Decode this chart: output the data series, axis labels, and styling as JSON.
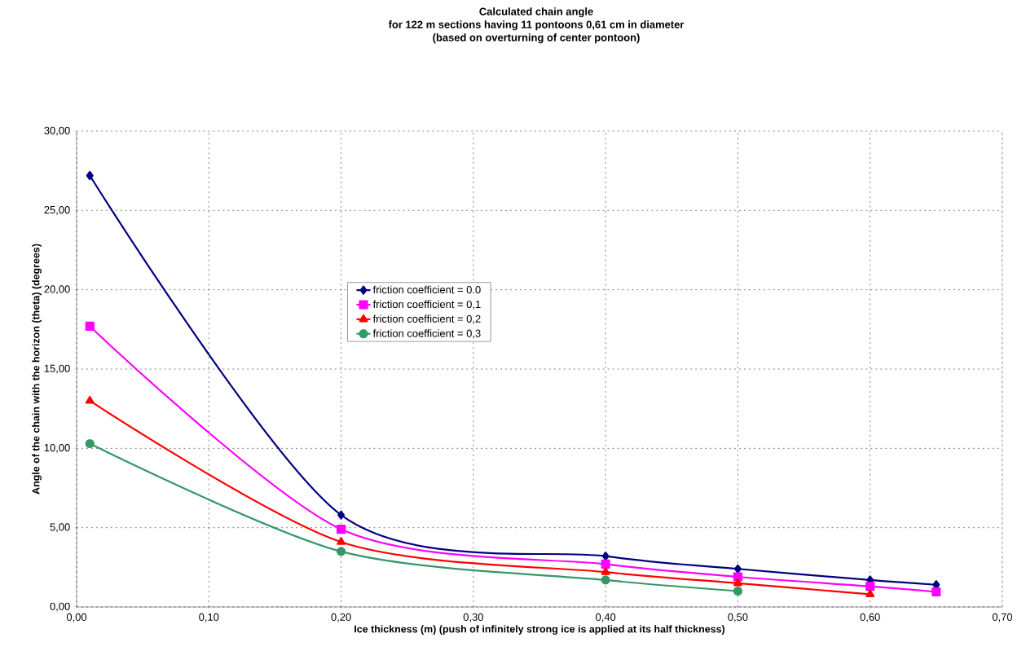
{
  "chart_data": {
    "type": "line",
    "title": "Calculated chain angle\nfor 122 m sections having 11 pontoons 0,61 cm in diameter\n(based on overturning of center pontoon)",
    "xlabel": "Ice thickness (m) (push of infinitely strong ice is applied at its half thickness)",
    "ylabel": "Angle of the chain with the horizon (theta) (degrees)",
    "xlim": [
      0,
      0.7
    ],
    "ylim": [
      0,
      30
    ],
    "xticks": [
      {
        "value": 0,
        "label": "0,00"
      },
      {
        "value": 0.1,
        "label": "0,10"
      },
      {
        "value": 0.2,
        "label": "0,20"
      },
      {
        "value": 0.3,
        "label": "0,30"
      },
      {
        "value": 0.4,
        "label": "0,40"
      },
      {
        "value": 0.5,
        "label": "0,50"
      },
      {
        "value": 0.6,
        "label": "0,60"
      },
      {
        "value": 0.7,
        "label": "0,70"
      }
    ],
    "yticks": [
      {
        "value": 0,
        "label": "0,00"
      },
      {
        "value": 5,
        "label": "5,00"
      },
      {
        "value": 10,
        "label": "10,00"
      },
      {
        "value": 15,
        "label": "15,00"
      },
      {
        "value": 20,
        "label": "20,00"
      },
      {
        "value": 25,
        "label": "25,00"
      },
      {
        "value": 30,
        "label": "30,00"
      }
    ],
    "grid": true,
    "legend": "center",
    "line_style": "solid",
    "series": [
      {
        "name": "friction coefficient = 0.0",
        "color": "#000080",
        "marker": "diamond",
        "x": [
          0.01,
          0.2,
          0.4,
          0.5,
          0.6,
          0.65
        ],
        "values": [
          27.2,
          5.8,
          3.2,
          2.4,
          1.7,
          1.4
        ]
      },
      {
        "name": "friction coefficient = 0,1",
        "color": "#ff00ff",
        "marker": "square",
        "x": [
          0.01,
          0.2,
          0.4,
          0.5,
          0.6,
          0.65
        ],
        "values": [
          17.7,
          4.9,
          2.7,
          1.9,
          1.3,
          0.95
        ]
      },
      {
        "name": "friction coefficient = 0,2",
        "color": "#ff0000",
        "marker": "triangle",
        "x": [
          0.01,
          0.2,
          0.4,
          0.5,
          0.6
        ],
        "values": [
          13.0,
          4.1,
          2.2,
          1.5,
          0.8
        ]
      },
      {
        "name": "friction coefficient = 0,3",
        "color": "#339966",
        "marker": "circle",
        "x": [
          0.01,
          0.2,
          0.4,
          0.5
        ],
        "values": [
          10.3,
          3.5,
          1.7,
          1.0
        ]
      }
    ]
  }
}
